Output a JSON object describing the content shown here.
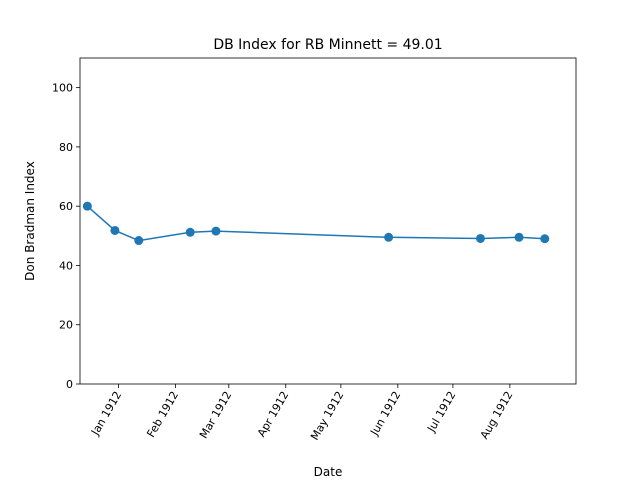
{
  "chart_data": {
    "type": "line",
    "title": "DB Index for RB Minnett = 49.01",
    "xlabel": "Date",
    "ylabel": "Don Bradman Index",
    "ylim": [
      0,
      110
    ],
    "yticks": [
      0,
      20,
      40,
      60,
      80,
      100
    ],
    "xlim": [
      "1911-12-11",
      "1912-09-06"
    ],
    "xticks": [
      {
        "date": "1912-01-01",
        "label": "Jan 1912"
      },
      {
        "date": "1912-02-01",
        "label": "Feb 1912"
      },
      {
        "date": "1912-03-01",
        "label": "Mar 1912"
      },
      {
        "date": "1912-04-01",
        "label": "Apr 1912"
      },
      {
        "date": "1912-05-01",
        "label": "May 1912"
      },
      {
        "date": "1912-06-01",
        "label": "Jun 1912"
      },
      {
        "date": "1912-07-01",
        "label": "Jul 1912"
      },
      {
        "date": "1912-08-01",
        "label": "Aug 1912"
      }
    ],
    "grid": false,
    "color": "#1f77b4",
    "series": [
      {
        "x": [
          "1911-12-15",
          "1911-12-30",
          "1912-01-12",
          "1912-02-09",
          "1912-02-23",
          "1912-05-27",
          "1912-07-16",
          "1912-08-06",
          "1912-08-20"
        ],
        "y": [
          60.0,
          51.8,
          48.4,
          51.2,
          51.6,
          49.5,
          49.1,
          49.5,
          49.01
        ]
      }
    ]
  }
}
